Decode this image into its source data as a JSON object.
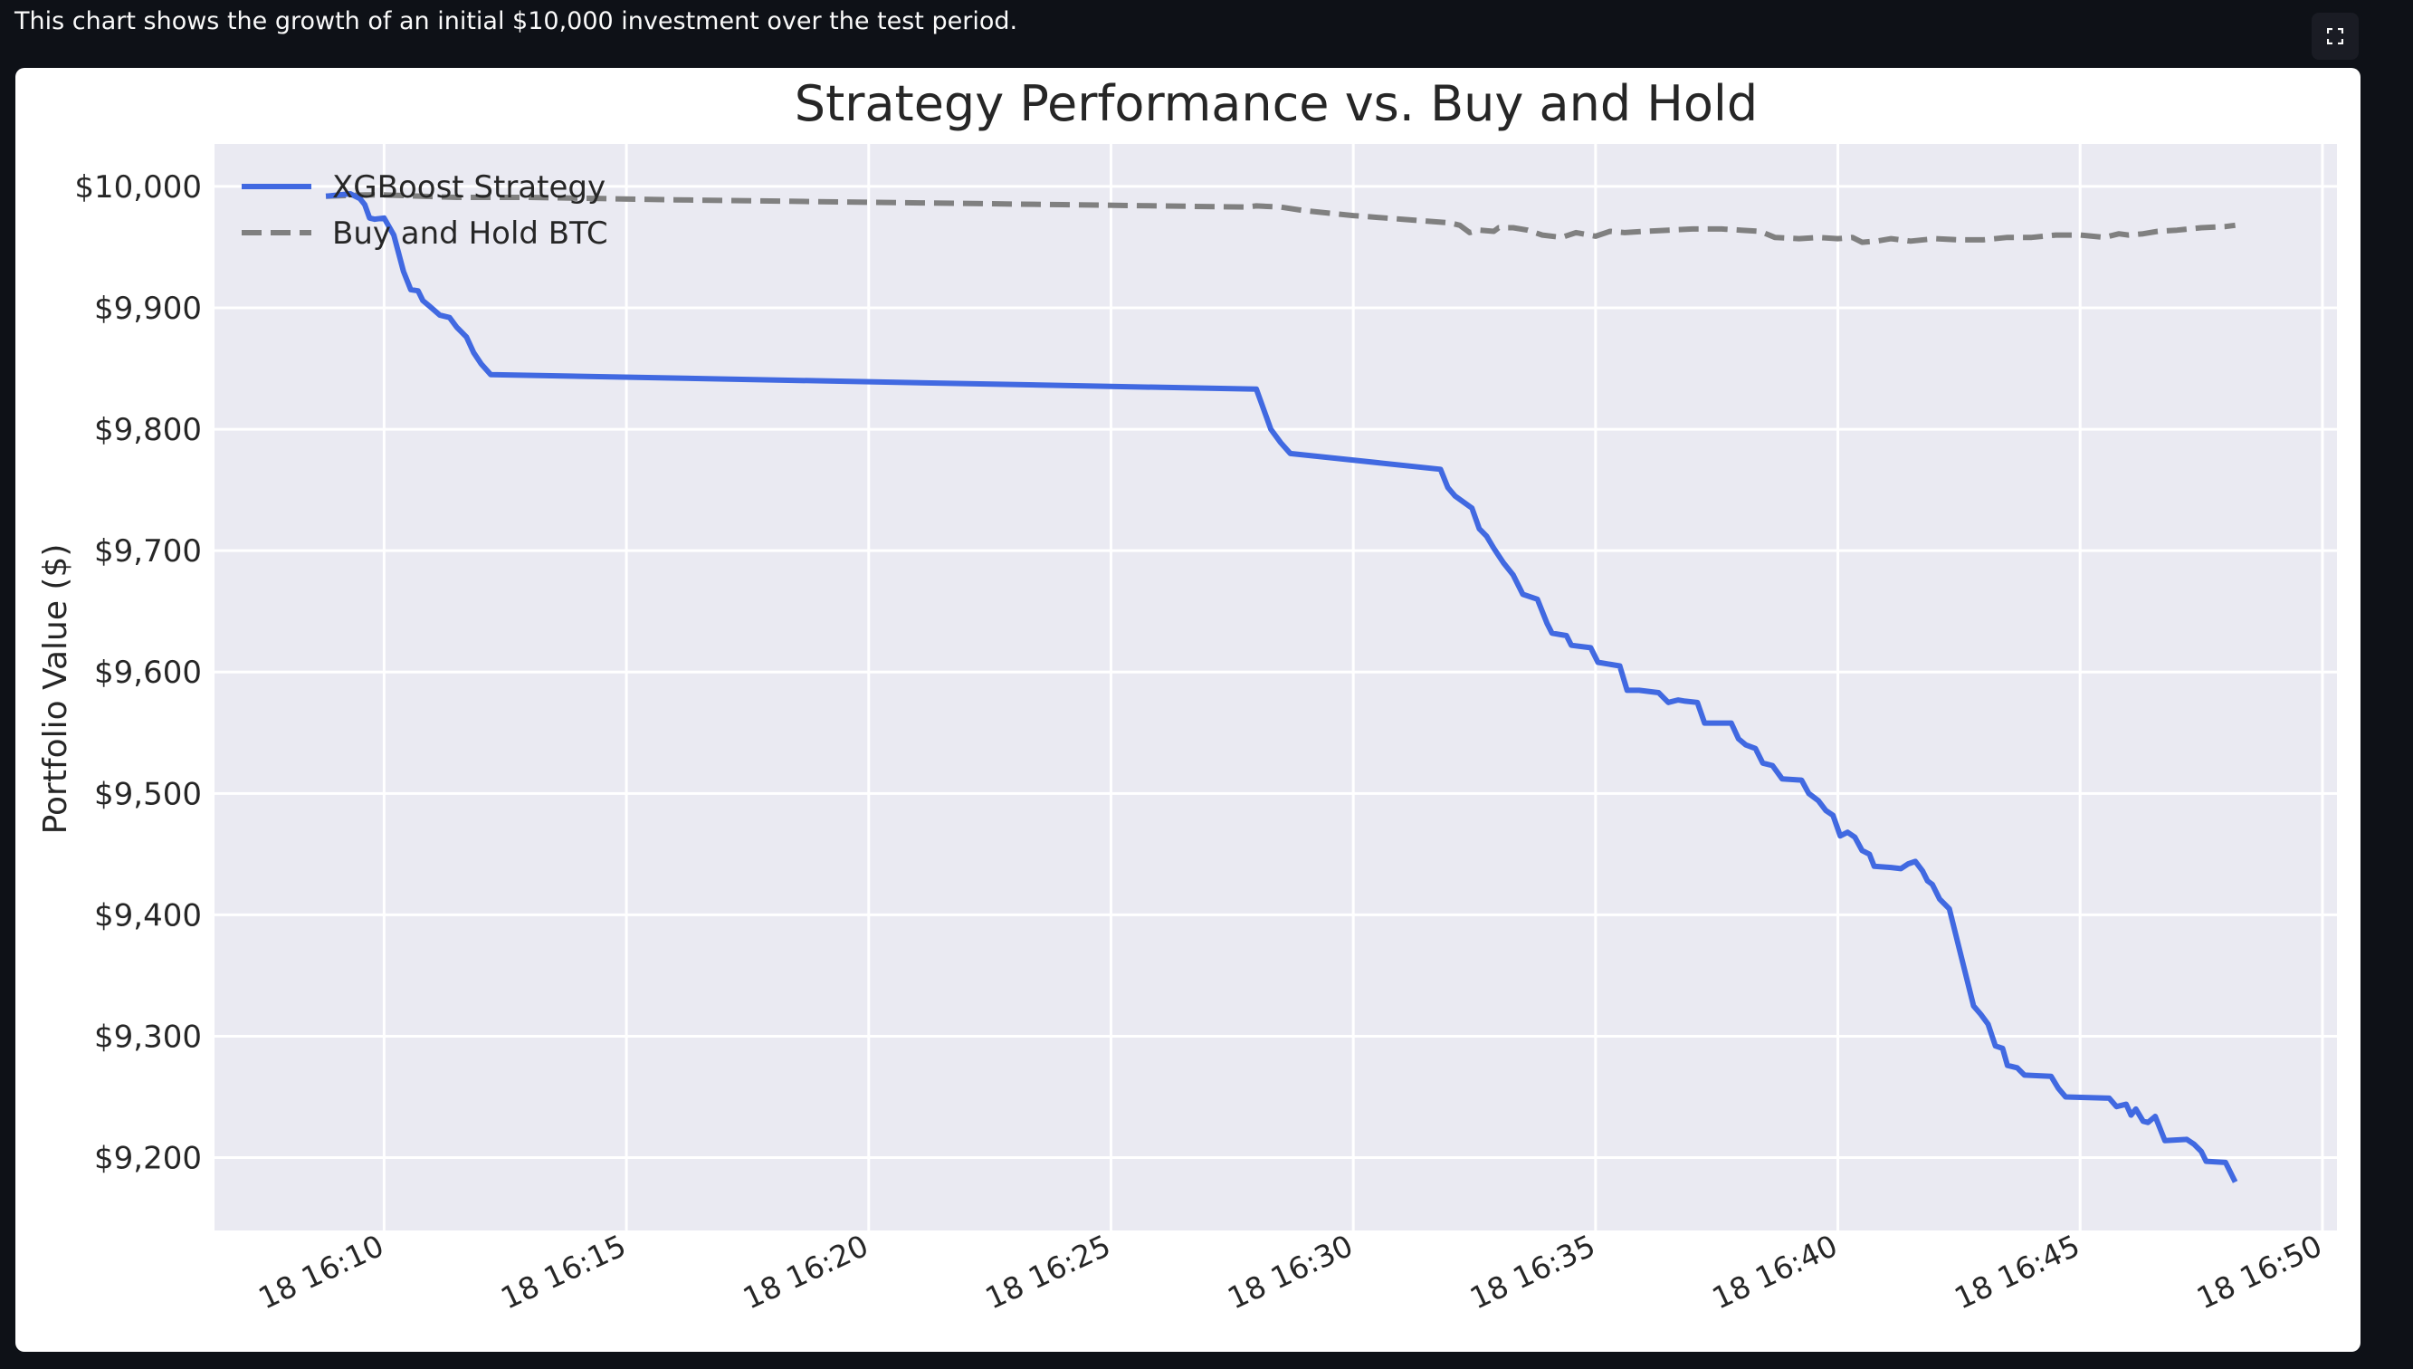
{
  "caption": "This chart shows the growth of an initial $10,000 investment over the test period.",
  "toolbar": {
    "fullscreen_icon": "fullscreen-icon"
  },
  "colors": {
    "page_background": "#0e1117",
    "plot_background": "#eaeaf2",
    "grid": "#ffffff",
    "strategy": "#4169e1",
    "buy_hold": "#808080",
    "text": "#262626"
  },
  "chart_data": {
    "type": "line",
    "title": "Strategy Performance vs. Buy and Hold",
    "xlabel": "",
    "ylabel": "Portfolio Value ($)",
    "x_unit": "minutes after 18 16:00",
    "xlim": [
      6.5,
      50.3
    ],
    "ylim": [
      9140,
      10035
    ],
    "x_ticks": [
      {
        "value": 10,
        "label": "18 16:10"
      },
      {
        "value": 15,
        "label": "18 16:15"
      },
      {
        "value": 20,
        "label": "18 16:20"
      },
      {
        "value": 25,
        "label": "18 16:25"
      },
      {
        "value": 30,
        "label": "18 16:30"
      },
      {
        "value": 35,
        "label": "18 16:35"
      },
      {
        "value": 40,
        "label": "18 16:40"
      },
      {
        "value": 45,
        "label": "18 16:45"
      },
      {
        "value": 50,
        "label": "18 16:50"
      }
    ],
    "y_ticks": [
      {
        "value": 10000,
        "label": "$10,000"
      },
      {
        "value": 9900,
        "label": "$9,900"
      },
      {
        "value": 9800,
        "label": "$9,800"
      },
      {
        "value": 9700,
        "label": "$9,700"
      },
      {
        "value": 9600,
        "label": "$9,600"
      },
      {
        "value": 9500,
        "label": "$9,500"
      },
      {
        "value": 9400,
        "label": "$9,400"
      },
      {
        "value": 9300,
        "label": "$9,300"
      },
      {
        "value": 9200,
        "label": "$9,200"
      }
    ],
    "grid": true,
    "legend_position": "top-left",
    "series": [
      {
        "name": "XGBoost Strategy",
        "style": "solid",
        "color": "#4169e1",
        "points": [
          [
            8.8,
            9992
          ],
          [
            9.3,
            9994
          ],
          [
            9.5,
            9990
          ],
          [
            9.6,
            9985
          ],
          [
            9.7,
            9974
          ],
          [
            9.8,
            9973
          ],
          [
            10.0,
            9974
          ],
          [
            10.2,
            9960
          ],
          [
            10.4,
            9930
          ],
          [
            10.55,
            9915
          ],
          [
            10.7,
            9914
          ],
          [
            10.8,
            9906
          ],
          [
            10.95,
            9901
          ],
          [
            11.15,
            9894
          ],
          [
            11.35,
            9892
          ],
          [
            11.5,
            9884
          ],
          [
            11.7,
            9876
          ],
          [
            11.85,
            9863
          ],
          [
            12.0,
            9854
          ],
          [
            12.2,
            9845
          ],
          [
            28.0,
            9833
          ],
          [
            28.3,
            9800
          ],
          [
            28.5,
            9789
          ],
          [
            28.7,
            9780
          ],
          [
            31.8,
            9767
          ],
          [
            31.95,
            9752
          ],
          [
            32.1,
            9745
          ],
          [
            32.45,
            9735
          ],
          [
            32.6,
            9718
          ],
          [
            32.75,
            9712
          ],
          [
            32.9,
            9702
          ],
          [
            33.1,
            9690
          ],
          [
            33.3,
            9680
          ],
          [
            33.5,
            9664
          ],
          [
            33.8,
            9660
          ],
          [
            34.0,
            9640
          ],
          [
            34.1,
            9632
          ],
          [
            34.4,
            9630
          ],
          [
            34.5,
            9622
          ],
          [
            34.9,
            9620
          ],
          [
            35.05,
            9608
          ],
          [
            35.5,
            9605
          ],
          [
            35.65,
            9585
          ],
          [
            35.9,
            9585
          ],
          [
            36.3,
            9583
          ],
          [
            36.5,
            9575
          ],
          [
            36.7,
            9577
          ],
          [
            36.85,
            9576
          ],
          [
            37.1,
            9575
          ],
          [
            37.25,
            9558
          ],
          [
            37.8,
            9558
          ],
          [
            37.95,
            9545
          ],
          [
            38.1,
            9540
          ],
          [
            38.3,
            9537
          ],
          [
            38.45,
            9525
          ],
          [
            38.65,
            9523
          ],
          [
            38.85,
            9512
          ],
          [
            39.25,
            9511
          ],
          [
            39.4,
            9500
          ],
          [
            39.6,
            9494
          ],
          [
            39.75,
            9486
          ],
          [
            39.9,
            9482
          ],
          [
            40.05,
            9465
          ],
          [
            40.2,
            9468
          ],
          [
            40.35,
            9464
          ],
          [
            40.5,
            9453
          ],
          [
            40.65,
            9450
          ],
          [
            40.75,
            9440
          ],
          [
            41.1,
            9439
          ],
          [
            41.3,
            9438
          ],
          [
            41.45,
            9442
          ],
          [
            41.6,
            9444
          ],
          [
            41.75,
            9436
          ],
          [
            41.85,
            9428
          ],
          [
            41.95,
            9425
          ],
          [
            42.1,
            9413
          ],
          [
            42.3,
            9405
          ],
          [
            42.5,
            9373
          ],
          [
            42.8,
            9325
          ],
          [
            42.95,
            9318
          ],
          [
            43.1,
            9310
          ],
          [
            43.25,
            9292
          ],
          [
            43.4,
            9290
          ],
          [
            43.5,
            9276
          ],
          [
            43.7,
            9274
          ],
          [
            43.85,
            9268
          ],
          [
            44.4,
            9267
          ],
          [
            44.55,
            9257
          ],
          [
            44.7,
            9250
          ],
          [
            45.6,
            9249
          ],
          [
            45.75,
            9242
          ],
          [
            45.95,
            9244
          ],
          [
            46.05,
            9235
          ],
          [
            46.15,
            9240
          ],
          [
            46.3,
            9230
          ],
          [
            46.4,
            9229
          ],
          [
            46.55,
            9234
          ],
          [
            46.75,
            9214
          ],
          [
            47.2,
            9215
          ],
          [
            47.35,
            9211
          ],
          [
            47.5,
            9205
          ],
          [
            47.6,
            9197
          ],
          [
            48.0,
            9196
          ],
          [
            48.2,
            9180
          ]
        ]
      },
      {
        "name": "Buy and Hold BTC",
        "style": "dashed",
        "color": "#808080",
        "points": [
          [
            8.8,
            9992
          ],
          [
            9.6,
            9993
          ],
          [
            10.0,
            9993
          ],
          [
            11.5,
            9991
          ],
          [
            13.0,
            9991
          ],
          [
            16.0,
            9989
          ],
          [
            20.0,
            9987
          ],
          [
            24.0,
            9985
          ],
          [
            27.8,
            9983
          ],
          [
            28.0,
            9984
          ],
          [
            28.5,
            9983
          ],
          [
            29.0,
            9980
          ],
          [
            30.0,
            9976
          ],
          [
            31.0,
            9973
          ],
          [
            32.0,
            9970
          ],
          [
            32.2,
            9968
          ],
          [
            32.4,
            9962
          ],
          [
            32.6,
            9964
          ],
          [
            32.9,
            9963
          ],
          [
            33.0,
            9966
          ],
          [
            33.3,
            9966
          ],
          [
            33.6,
            9964
          ],
          [
            33.9,
            9960
          ],
          [
            34.3,
            9958
          ],
          [
            34.6,
            9962
          ],
          [
            35.0,
            9959
          ],
          [
            35.3,
            9963
          ],
          [
            35.6,
            9962
          ],
          [
            36.0,
            9963
          ],
          [
            36.5,
            9964
          ],
          [
            37.0,
            9965
          ],
          [
            37.6,
            9965
          ],
          [
            38.0,
            9964
          ],
          [
            38.4,
            9963
          ],
          [
            38.7,
            9958
          ],
          [
            39.2,
            9957
          ],
          [
            39.6,
            9958
          ],
          [
            40.0,
            9957
          ],
          [
            40.3,
            9958
          ],
          [
            40.5,
            9954
          ],
          [
            40.8,
            9955
          ],
          [
            41.1,
            9957
          ],
          [
            41.5,
            9955
          ],
          [
            42.0,
            9957
          ],
          [
            42.5,
            9956
          ],
          [
            43.0,
            9956
          ],
          [
            43.5,
            9958
          ],
          [
            44.0,
            9958
          ],
          [
            44.5,
            9960
          ],
          [
            45.0,
            9960
          ],
          [
            45.5,
            9958
          ],
          [
            45.8,
            9961
          ],
          [
            46.0,
            9960
          ],
          [
            46.3,
            9961
          ],
          [
            46.6,
            9963
          ],
          [
            47.0,
            9964
          ],
          [
            47.5,
            9966
          ],
          [
            48.0,
            9967
          ],
          [
            48.2,
            9968
          ]
        ]
      }
    ]
  }
}
